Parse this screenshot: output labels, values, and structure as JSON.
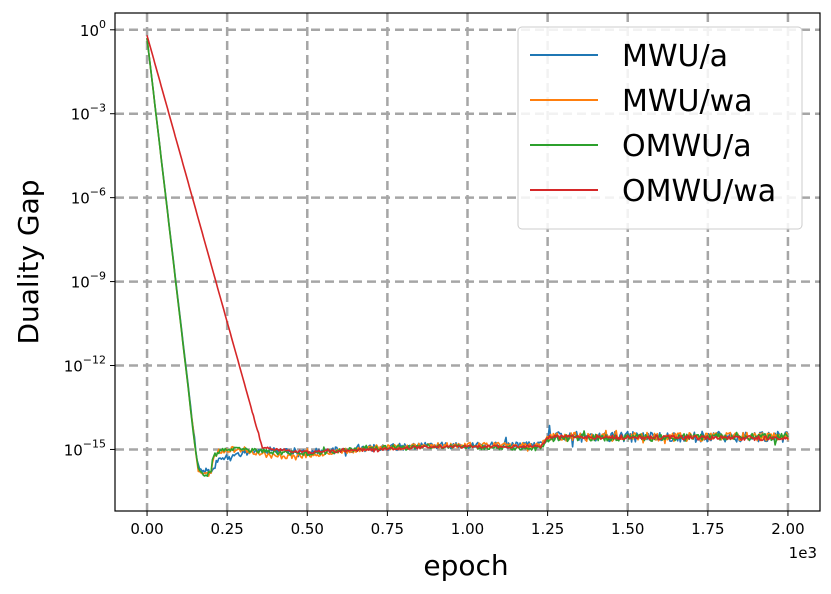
{
  "chart_data": {
    "type": "line",
    "title": "",
    "xlabel": "epoch",
    "ylabel": "Duality Gap",
    "x_offset_text": "1e3",
    "xlim": [
      -0.1,
      2.1
    ],
    "ylim_log10": [
      -17.2,
      0.6
    ],
    "yscale": "log",
    "grid": true,
    "legend_position": "upper right",
    "x_ticks": [
      {
        "value": 0.0,
        "label": "0.00"
      },
      {
        "value": 0.25,
        "label": "0.25"
      },
      {
        "value": 0.5,
        "label": "0.50"
      },
      {
        "value": 0.75,
        "label": "0.75"
      },
      {
        "value": 1.0,
        "label": "1.00"
      },
      {
        "value": 1.25,
        "label": "1.25"
      },
      {
        "value": 1.5,
        "label": "1.50"
      },
      {
        "value": 1.75,
        "label": "1.75"
      },
      {
        "value": 2.0,
        "label": "2.00"
      }
    ],
    "y_ticks": [
      {
        "exp": 0,
        "base": "10",
        "sup": "0"
      },
      {
        "exp": -3,
        "base": "10",
        "sup": "−3"
      },
      {
        "exp": -6,
        "base": "10",
        "sup": "−6"
      },
      {
        "exp": -9,
        "base": "10",
        "sup": "−9"
      },
      {
        "exp": -12,
        "base": "10",
        "sup": "−12"
      },
      {
        "exp": -15,
        "base": "10",
        "sup": "−15"
      }
    ],
    "series": [
      {
        "name": "MWU/a",
        "color": "#1f77b4",
        "noise": 0.12,
        "seed": 11,
        "points": [
          [
            0.0,
            -0.3
          ],
          [
            0.15,
            -14.8
          ],
          [
            0.16,
            -15.6
          ],
          [
            0.175,
            -15.8
          ],
          [
            0.19,
            -15.7
          ],
          [
            0.2,
            -15.9
          ],
          [
            0.201,
            -16.3
          ],
          [
            0.205,
            -15.7
          ],
          [
            0.22,
            -15.4
          ],
          [
            0.25,
            -15.25
          ],
          [
            0.3,
            -15.1
          ],
          [
            0.4,
            -15.0
          ],
          [
            0.5,
            -15.1
          ],
          [
            0.7,
            -14.95
          ],
          [
            0.9,
            -14.85
          ],
          [
            1.23,
            -14.85
          ],
          [
            1.25,
            -14.55
          ],
          [
            2.0,
            -14.55
          ]
        ]
      },
      {
        "name": "MWU/wa",
        "color": "#ff7f0e",
        "noise": 0.1,
        "seed": 23,
        "points": [
          [
            0.0,
            -0.3
          ],
          [
            0.15,
            -14.9
          ],
          [
            0.16,
            -15.7
          ],
          [
            0.18,
            -15.9
          ],
          [
            0.2,
            -15.85
          ],
          [
            0.205,
            -15.3
          ],
          [
            0.22,
            -15.1
          ],
          [
            0.25,
            -15.0
          ],
          [
            0.3,
            -15.0
          ],
          [
            0.4,
            -15.25
          ],
          [
            0.5,
            -15.2
          ],
          [
            0.7,
            -14.95
          ],
          [
            0.9,
            -14.85
          ],
          [
            1.23,
            -14.85
          ],
          [
            1.25,
            -14.55
          ],
          [
            2.0,
            -14.55
          ]
        ]
      },
      {
        "name": "OMWU/a",
        "color": "#2ca02c",
        "noise": 0.08,
        "seed": 37,
        "points": [
          [
            0.0,
            -0.3
          ],
          [
            0.15,
            -14.9
          ],
          [
            0.16,
            -15.7
          ],
          [
            0.18,
            -15.9
          ],
          [
            0.2,
            -15.85
          ],
          [
            0.205,
            -15.3
          ],
          [
            0.22,
            -15.1
          ],
          [
            0.25,
            -15.0
          ],
          [
            0.3,
            -15.0
          ],
          [
            0.4,
            -15.1
          ],
          [
            0.5,
            -15.15
          ],
          [
            0.7,
            -14.95
          ],
          [
            0.9,
            -14.9
          ],
          [
            1.23,
            -14.95
          ],
          [
            1.25,
            -14.6
          ],
          [
            2.0,
            -14.55
          ]
        ]
      },
      {
        "name": "OMWU/wa",
        "color": "#d62728",
        "noise": 0.05,
        "seed": 51,
        "points": [
          [
            0.0,
            -0.2
          ],
          [
            0.36,
            -14.95
          ],
          [
            0.4,
            -15.0
          ],
          [
            0.5,
            -15.1
          ],
          [
            0.7,
            -15.0
          ],
          [
            0.9,
            -14.9
          ],
          [
            1.23,
            -14.9
          ],
          [
            1.25,
            -14.55
          ],
          [
            2.0,
            -14.6
          ]
        ]
      }
    ]
  }
}
